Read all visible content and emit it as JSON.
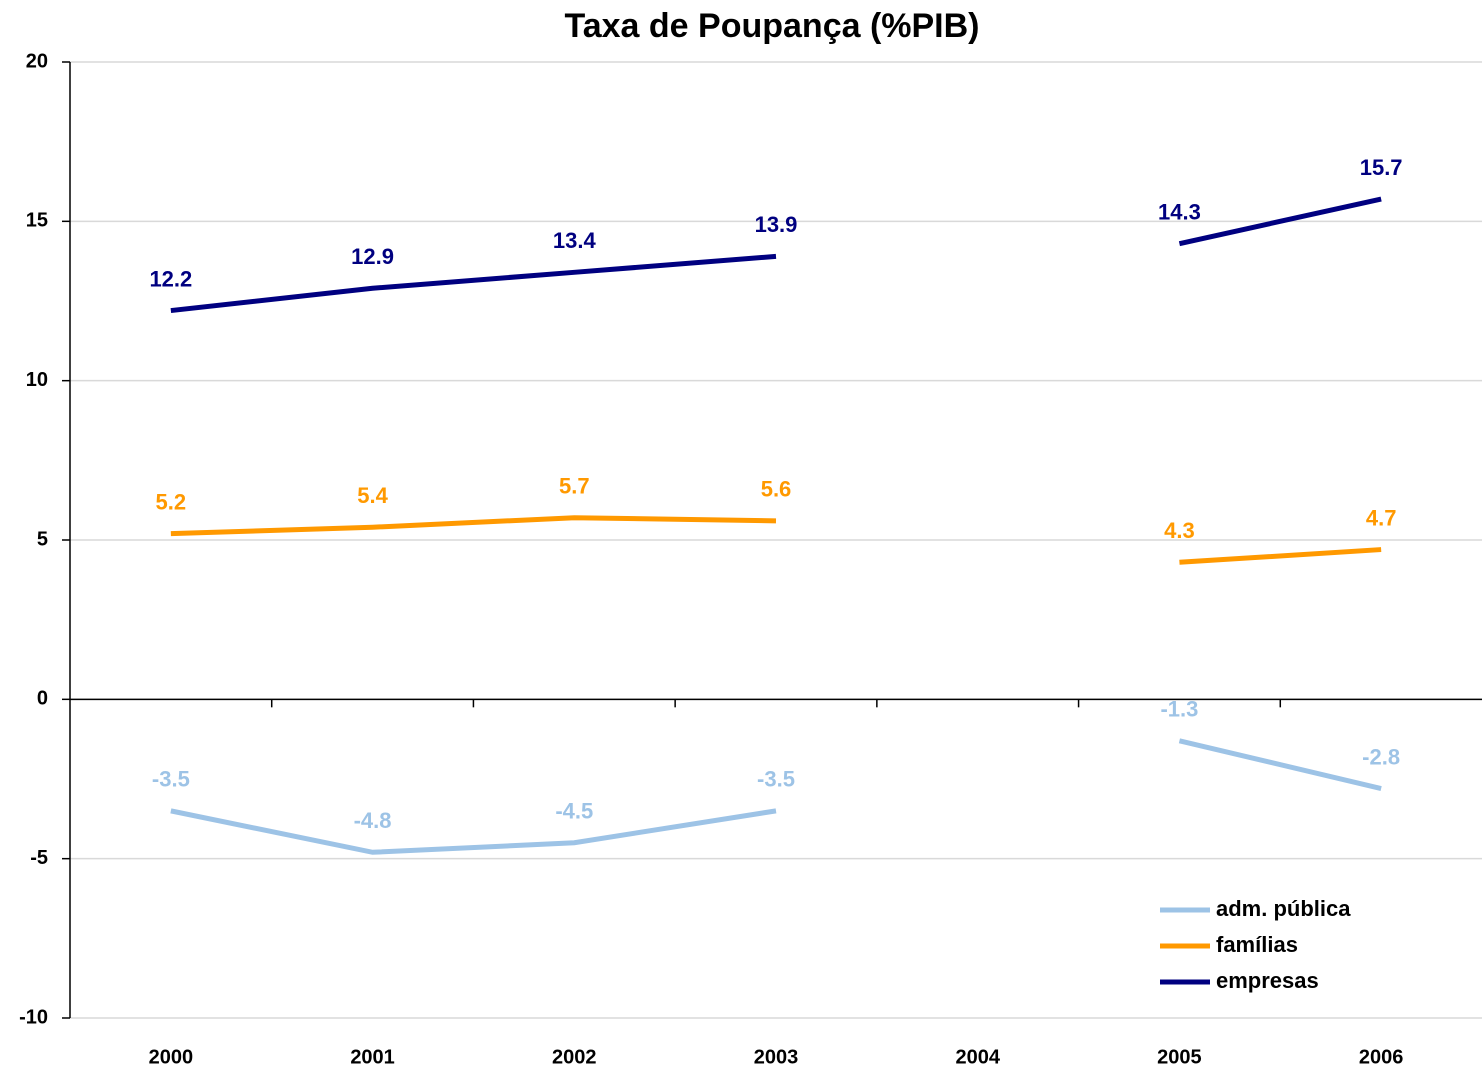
{
  "chart_data": {
    "type": "line",
    "title": "Taxa de Poupança (%PIB)",
    "categories": [
      "2000",
      "2001",
      "2002",
      "2003",
      "2004",
      "2005",
      "2006"
    ],
    "series": [
      {
        "name": "adm. pública",
        "color": "#9dc3e6",
        "values": [
          -3.5,
          -4.8,
          -4.5,
          -3.5,
          null,
          -1.3,
          -2.8
        ]
      },
      {
        "name": "famílias",
        "color": "#ff9900",
        "values": [
          5.2,
          5.4,
          5.7,
          5.6,
          null,
          4.3,
          4.7
        ]
      },
      {
        "name": "empresas",
        "color": "#000080",
        "values": [
          12.2,
          12.9,
          13.4,
          13.9,
          null,
          14.3,
          15.7
        ]
      }
    ],
    "ylim": [
      -10,
      20
    ],
    "yticks": [
      -10,
      -5,
      0,
      5,
      10,
      15,
      20
    ],
    "grid": true,
    "legend": "lower right"
  }
}
